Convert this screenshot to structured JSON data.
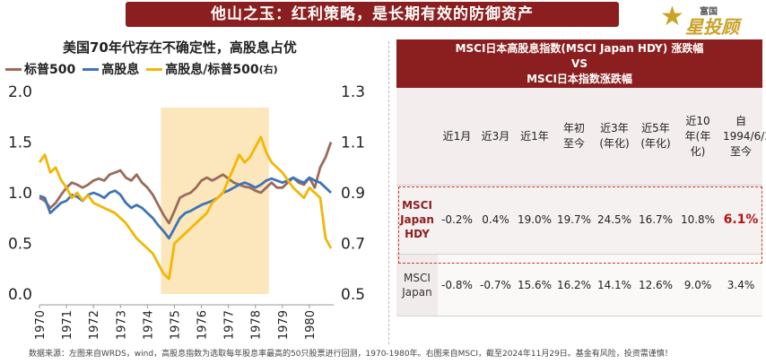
{
  "banner": "他山之玉：红利策略，是长期有效的防御资产",
  "logo": {
    "small": "富国",
    "big": "星投顾"
  },
  "chart_title": "美国70年代存在不确定性，高股息占优",
  "legend": [
    {
      "name": "标普500",
      "color": "#9b6b5c"
    },
    {
      "name": "高股息",
      "color": "#3f74b5"
    },
    {
      "name": "高股息/标普500",
      "color": "#f2b705",
      "unit": "(右)"
    }
  ],
  "chart_data": {
    "type": "line",
    "x_ticks": [
      "1970",
      "1971",
      "1972",
      "1973",
      "1974",
      "1975",
      "1976",
      "1977",
      "1978",
      "1979",
      "1980"
    ],
    "xlim": [
      1970,
      1980.9
    ],
    "ylim_left": [
      0.0,
      2.0
    ],
    "ylim_right": [
      0.5,
      1.3
    ],
    "y_ticks_left": [
      "0.0",
      "0.5",
      "1.0",
      "1.5",
      "2.0"
    ],
    "y_ticks_right": [
      "0.5",
      "0.7",
      "0.9",
      "1.1",
      "1.3"
    ],
    "shaded_range": [
      1974.5,
      1978.5
    ],
    "series": [
      {
        "name": "标普500",
        "axis": "left",
        "color": "#9b6b5c",
        "x": [
          1970.0,
          1970.2,
          1970.4,
          1970.6,
          1970.8,
          1971.0,
          1971.2,
          1971.4,
          1971.6,
          1971.8,
          1972.0,
          1972.2,
          1972.4,
          1972.6,
          1972.8,
          1973.0,
          1973.2,
          1973.4,
          1973.6,
          1973.8,
          1974.0,
          1974.2,
          1974.4,
          1974.6,
          1974.8,
          1975.0,
          1975.2,
          1975.4,
          1975.6,
          1975.8,
          1976.0,
          1976.2,
          1976.4,
          1976.6,
          1976.8,
          1977.0,
          1977.2,
          1977.4,
          1977.6,
          1977.8,
          1978.0,
          1978.2,
          1978.4,
          1978.6,
          1978.8,
          1979.0,
          1979.2,
          1979.4,
          1979.6,
          1979.8,
          1980.0,
          1980.2,
          1980.4,
          1980.6,
          1980.8
        ],
        "y": [
          0.95,
          0.92,
          0.85,
          0.9,
          0.98,
          1.05,
          1.1,
          1.08,
          1.05,
          1.08,
          1.12,
          1.14,
          1.12,
          1.18,
          1.2,
          1.22,
          1.15,
          1.12,
          1.18,
          1.1,
          1.05,
          0.98,
          0.88,
          0.78,
          0.7,
          0.82,
          0.95,
          0.98,
          1.0,
          1.05,
          1.12,
          1.15,
          1.12,
          1.15,
          1.18,
          1.14,
          1.1,
          1.08,
          1.06,
          1.05,
          1.02,
          1.0,
          1.05,
          1.1,
          1.05,
          1.05,
          1.1,
          1.15,
          1.1,
          1.08,
          1.15,
          1.05,
          1.25,
          1.35,
          1.5
        ]
      },
      {
        "name": "高股息",
        "axis": "left",
        "color": "#3f74b5",
        "x": [
          1970.0,
          1970.2,
          1970.4,
          1970.6,
          1970.8,
          1971.0,
          1971.2,
          1971.4,
          1971.6,
          1971.8,
          1972.0,
          1972.2,
          1972.4,
          1972.6,
          1972.8,
          1973.0,
          1973.2,
          1973.4,
          1973.6,
          1973.8,
          1974.0,
          1974.2,
          1974.4,
          1974.6,
          1974.8,
          1975.0,
          1975.2,
          1975.4,
          1975.6,
          1975.8,
          1976.0,
          1976.2,
          1976.4,
          1976.6,
          1976.8,
          1977.0,
          1977.2,
          1977.4,
          1977.6,
          1977.8,
          1978.0,
          1978.2,
          1978.4,
          1978.6,
          1978.8,
          1979.0,
          1979.2,
          1979.4,
          1979.6,
          1979.8,
          1980.0,
          1980.2,
          1980.4,
          1980.6,
          1980.8
        ],
        "y": [
          0.97,
          0.95,
          0.8,
          0.85,
          0.9,
          0.92,
          0.98,
          0.96,
          0.92,
          0.98,
          1.0,
          0.98,
          0.95,
          1.0,
          1.02,
          0.98,
          0.9,
          0.85,
          0.88,
          0.85,
          0.8,
          0.75,
          0.68,
          0.62,
          0.55,
          0.65,
          0.75,
          0.8,
          0.82,
          0.85,
          0.88,
          0.9,
          0.92,
          0.95,
          1.0,
          1.02,
          1.05,
          1.08,
          1.1,
          1.08,
          1.05,
          1.08,
          1.12,
          1.14,
          1.12,
          1.1,
          1.12,
          1.15,
          1.12,
          1.1,
          1.15,
          1.12,
          1.1,
          1.05,
          1.0
        ]
      },
      {
        "name": "高股息/标普500",
        "axis": "right",
        "color": "#f2b705",
        "x": [
          1970.0,
          1970.2,
          1970.4,
          1970.6,
          1970.8,
          1971.0,
          1971.2,
          1971.4,
          1971.6,
          1971.8,
          1972.0,
          1972.2,
          1972.4,
          1972.6,
          1972.8,
          1973.0,
          1973.2,
          1973.4,
          1973.6,
          1973.8,
          1974.0,
          1974.2,
          1974.4,
          1974.6,
          1974.8,
          1975.0,
          1975.2,
          1975.4,
          1975.6,
          1975.8,
          1976.0,
          1976.2,
          1976.4,
          1976.6,
          1976.8,
          1977.0,
          1977.2,
          1977.4,
          1977.6,
          1977.8,
          1978.0,
          1978.2,
          1978.4,
          1978.6,
          1978.8,
          1979.0,
          1979.2,
          1979.4,
          1979.6,
          1979.8,
          1980.0,
          1980.2,
          1980.4,
          1980.6,
          1980.8
        ],
        "y": [
          1.02,
          1.05,
          0.98,
          1.0,
          0.95,
          0.92,
          0.88,
          0.9,
          0.87,
          0.89,
          0.86,
          0.85,
          0.84,
          0.83,
          0.82,
          0.8,
          0.78,
          0.75,
          0.72,
          0.7,
          0.68,
          0.66,
          0.62,
          0.58,
          0.56,
          0.7,
          0.72,
          0.74,
          0.76,
          0.78,
          0.8,
          0.82,
          0.86,
          0.88,
          0.9,
          0.95,
          1.0,
          1.05,
          1.02,
          1.04,
          1.08,
          1.12,
          1.06,
          1.02,
          1.0,
          0.98,
          0.95,
          0.92,
          0.9,
          0.88,
          0.92,
          0.9,
          0.88,
          0.72,
          0.68
        ]
      }
    ]
  },
  "table": {
    "header_lines": [
      "MSCI日本高股息指数(MSCI Japan HDY) 涨跌幅",
      "VS",
      "MSCI日本指数涨跌幅"
    ],
    "columns": [
      "近1月",
      "近3月",
      "近1年",
      "年初至今",
      "近3年(年化)",
      "近5年(年化)",
      "近10年(年化)",
      "自1994/6/30至今"
    ],
    "rows": [
      {
        "label": "MSCI Japan HDY",
        "values": [
          "-0.2%",
          "0.4%",
          "19.0%",
          "19.7%",
          "24.5%",
          "16.7%",
          "10.8%",
          "6.1%"
        ]
      },
      {
        "label": "MSCI Japan",
        "values": [
          "-0.8%",
          "-0.7%",
          "15.6%",
          "16.2%",
          "14.1%",
          "12.6%",
          "9.0%",
          "3.4%"
        ]
      }
    ]
  },
  "footer": "数据来源：左图来自WRDS，wind，高股息指数为选取每年股息率最高的50只股票进行回测，1970-1980年。右图来自MSCI，截至2024年11月29日。基金有风险，投资需谨慎！"
}
